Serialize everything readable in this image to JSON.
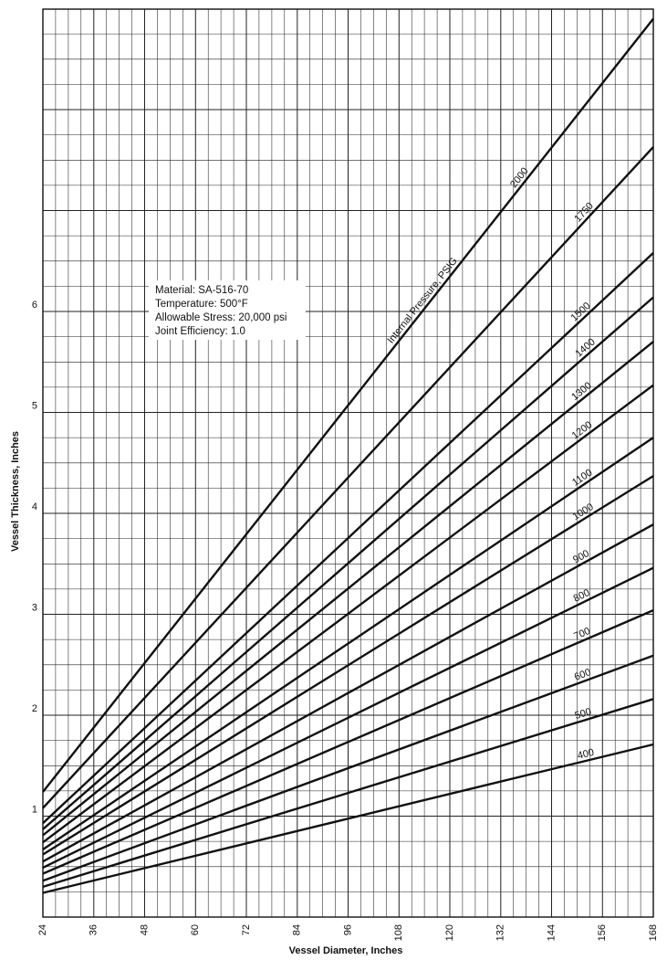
{
  "chart_data": {
    "type": "line",
    "xlabel": "Vessel Diameter, Inches",
    "ylabel": "Vessel Thickness, Inches",
    "xlim": [
      24,
      168
    ],
    "x_ticks": [
      24,
      36,
      48,
      60,
      72,
      84,
      96,
      108,
      120,
      132,
      144,
      156,
      168
    ],
    "ylim": [
      0,
      9
    ],
    "y_ticks": [
      1,
      2,
      3,
      4,
      5,
      6
    ],
    "grid": true,
    "colors": {
      "line": "#111111",
      "grid": "#1a1a1a",
      "background": "#ffffff"
    },
    "annotation": {
      "lines": [
        "Material: SA-516-70",
        "Temperature: 500°F",
        "Allowable Stress: 20,000 psi",
        "Joint Efficiency: 1.0"
      ]
    },
    "pressure_caption": "Internal Pressure, PSIG",
    "series": [
      {
        "name": "400",
        "points": [
          [
            24,
            0.24
          ],
          [
            168,
            1.71
          ]
        ]
      },
      {
        "name": "500",
        "points": [
          [
            24,
            0.3
          ],
          [
            168,
            2.16
          ]
        ]
      },
      {
        "name": "600",
        "points": [
          [
            24,
            0.36
          ],
          [
            168,
            2.59
          ]
        ]
      },
      {
        "name": "700",
        "points": [
          [
            24,
            0.43
          ],
          [
            168,
            3.04
          ]
        ]
      },
      {
        "name": "800",
        "points": [
          [
            24,
            0.49
          ],
          [
            168,
            3.46
          ]
        ]
      },
      {
        "name": "900",
        "points": [
          [
            24,
            0.55
          ],
          [
            168,
            3.89
          ]
        ]
      },
      {
        "name": "1000",
        "points": [
          [
            24,
            0.62
          ],
          [
            168,
            4.37
          ]
        ]
      },
      {
        "name": "1100",
        "points": [
          [
            24,
            0.67
          ],
          [
            168,
            4.75
          ]
        ]
      },
      {
        "name": "1200",
        "points": [
          [
            24,
            0.74
          ],
          [
            168,
            5.27
          ]
        ]
      },
      {
        "name": "1300",
        "points": [
          [
            24,
            0.81
          ],
          [
            168,
            5.7
          ]
        ]
      },
      {
        "name": "1400",
        "points": [
          [
            24,
            0.87
          ],
          [
            168,
            6.14
          ]
        ]
      },
      {
        "name": "1500",
        "points": [
          [
            24,
            0.93
          ],
          [
            168,
            6.58
          ]
        ]
      },
      {
        "name": "1750",
        "points": [
          [
            24,
            1.08
          ],
          [
            168,
            7.63
          ]
        ]
      },
      {
        "name": "2000",
        "points": [
          [
            24,
            1.24
          ],
          [
            168,
            8.9
          ]
        ]
      }
    ]
  }
}
